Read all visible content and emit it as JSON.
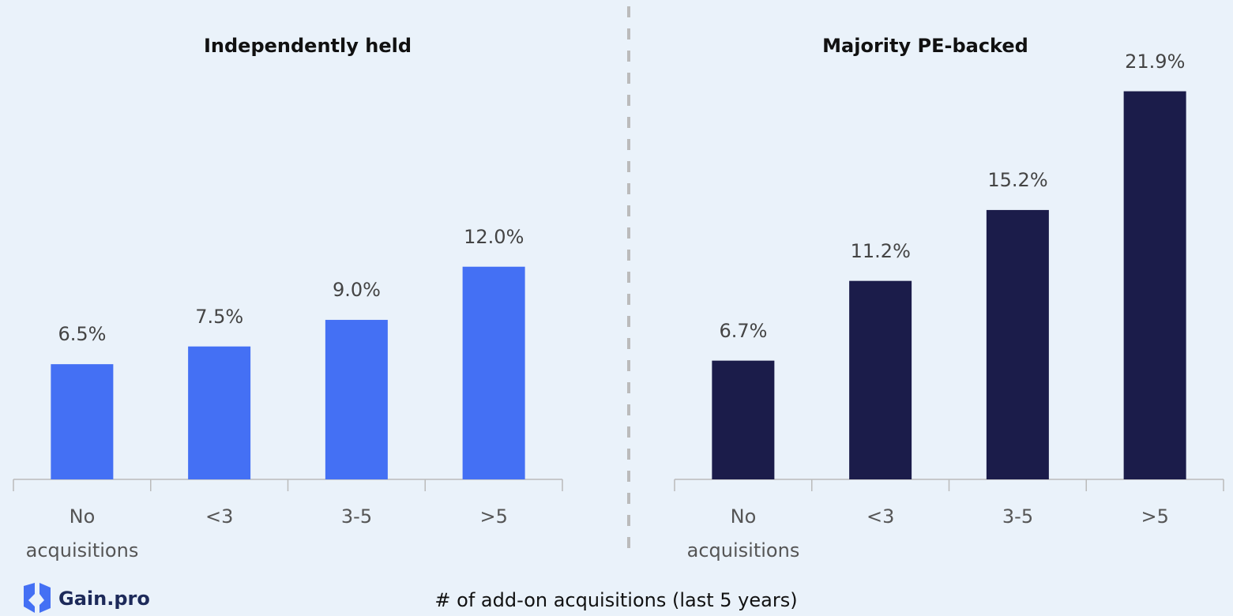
{
  "chart_data": [
    {
      "type": "bar",
      "title": "Independently held",
      "categories": [
        "No acquisitions",
        "<3",
        "3-5",
        ">5"
      ],
      "values": [
        6.5,
        7.5,
        9.0,
        12.0
      ],
      "value_labels": [
        "6.5%",
        "7.5%",
        "9.0%",
        "12.0%"
      ],
      "color": "#4470f4",
      "ylim": [
        0,
        25
      ]
    },
    {
      "type": "bar",
      "title": "Majority PE-backed",
      "categories": [
        "No acquisitions",
        "<3",
        "3-5",
        ">5"
      ],
      "values": [
        6.7,
        11.2,
        15.2,
        21.9
      ],
      "value_labels": [
        "6.7%",
        "11.2%",
        "15.2%",
        "21.9%"
      ],
      "color": "#1b1c4a",
      "ylim": [
        0,
        25
      ]
    }
  ],
  "xlabel": "# of add-on acquisitions (last 5 years)",
  "logo": "Gain.pro"
}
